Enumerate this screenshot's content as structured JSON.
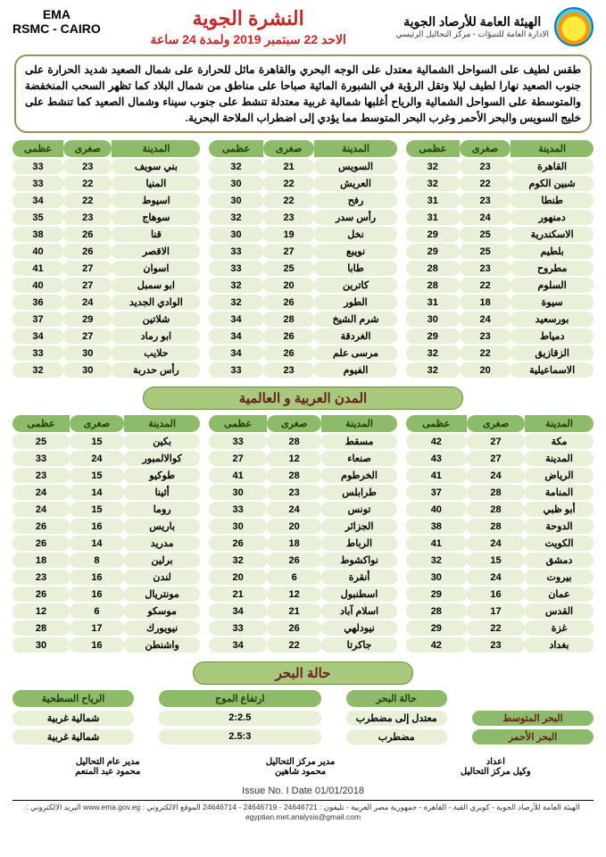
{
  "header": {
    "org_ar": "الهيئة العامة للأرصاد الجوية",
    "org_sub": "الادارة العامة للتنبؤات - مركز التحاليل الرئيسي",
    "org_en1": "EMA",
    "org_en2": "RSMC - CAIRO",
    "title": "النشرة الجوية",
    "subtitle": "الاحد 22 سبتمبر 2019 ولمدة 24 ساعة"
  },
  "synopsis": "طقس لطيف على السواحل الشمالية معتدل على الوجه البحري والقاهرة مائل للحرارة على شمال الصعيد شديد الحرارة على جنوب الصعيد نهارا لطيف ليلا وتقل الرؤية في الشبورة المائية صباحا على مناطق من شمال البلاد كما تظهر السحب المنخفضة والمتوسطة على السواحل الشمالية والرياح أغلبها شمالية غربية معتدلة تنشط على جنوب سيناء وشمال الصعيد كما تنشط على خليج السويس والبحر الأحمر وغرب البحر المتوسط مما يؤدي إلى اضطراب الملاحة البحرية.",
  "col_headers": {
    "city": "المدينة",
    "min": "صغرى",
    "max": "عظمى"
  },
  "egypt": {
    "t1": [
      {
        "c": "القاهرة",
        "min": 23,
        "max": 32
      },
      {
        "c": "شبين الكوم",
        "min": 22,
        "max": 32
      },
      {
        "c": "طنطا",
        "min": 23,
        "max": 31
      },
      {
        "c": "دمنهور",
        "min": 24,
        "max": 31
      },
      {
        "c": "الاسكندرية",
        "min": 25,
        "max": 29
      },
      {
        "c": "بلطيم",
        "min": 25,
        "max": 29
      },
      {
        "c": "مطروح",
        "min": 23,
        "max": 28
      },
      {
        "c": "السلوم",
        "min": 22,
        "max": 28
      },
      {
        "c": "سيوة",
        "min": 18,
        "max": 31
      },
      {
        "c": "بورسعيد",
        "min": 24,
        "max": 30
      },
      {
        "c": "دمياط",
        "min": 23,
        "max": 29
      },
      {
        "c": "الزقازيق",
        "min": 22,
        "max": 32
      },
      {
        "c": "الاسماعيلية",
        "min": 20,
        "max": 32
      }
    ],
    "t2": [
      {
        "c": "السويس",
        "min": 21,
        "max": 32
      },
      {
        "c": "العريش",
        "min": 22,
        "max": 30
      },
      {
        "c": "رفح",
        "min": 22,
        "max": 30
      },
      {
        "c": "رأس سدر",
        "min": 23,
        "max": 32
      },
      {
        "c": "نخل",
        "min": 19,
        "max": 30
      },
      {
        "c": "نويبع",
        "min": 27,
        "max": 33
      },
      {
        "c": "طابا",
        "min": 25,
        "max": 33
      },
      {
        "c": "كاترين",
        "min": 20,
        "max": 32
      },
      {
        "c": "الطور",
        "min": 26,
        "max": 32
      },
      {
        "c": "شرم الشيخ",
        "min": 28,
        "max": 34
      },
      {
        "c": "الغردقة",
        "min": 26,
        "max": 34
      },
      {
        "c": "مرسى علم",
        "min": 26,
        "max": 34
      },
      {
        "c": "الفيوم",
        "min": 23,
        "max": 33
      }
    ],
    "t3": [
      {
        "c": "بني سويف",
        "min": 23,
        "max": 33
      },
      {
        "c": "المنيا",
        "min": 22,
        "max": 33
      },
      {
        "c": "اسيوط",
        "min": 22,
        "max": 34
      },
      {
        "c": "سوهاج",
        "min": 23,
        "max": 35
      },
      {
        "c": "قنا",
        "min": 26,
        "max": 38
      },
      {
        "c": "الاقصر",
        "min": 26,
        "max": 40
      },
      {
        "c": "اسوان",
        "min": 27,
        "max": 41
      },
      {
        "c": "ابو سمبل",
        "min": 27,
        "max": 40
      },
      {
        "c": "الوادي الجديد",
        "min": 24,
        "max": 36
      },
      {
        "c": "شلاتين",
        "min": 29,
        "max": 37
      },
      {
        "c": "ابو رماد",
        "min": 27,
        "max": 34
      },
      {
        "c": "حلايب",
        "min": 30,
        "max": 33
      },
      {
        "c": "رأس حدربة",
        "min": 30,
        "max": 32
      }
    ]
  },
  "section_world": "المدن العربية و العالمية",
  "world": {
    "t1": [
      {
        "c": "مكة",
        "min": 27,
        "max": 42
      },
      {
        "c": "المدينة",
        "min": 27,
        "max": 43
      },
      {
        "c": "الرياض",
        "min": 24,
        "max": 41
      },
      {
        "c": "المنامة",
        "min": 28,
        "max": 37
      },
      {
        "c": "أبو ظبي",
        "min": 28,
        "max": 40
      },
      {
        "c": "الدوحة",
        "min": 28,
        "max": 38
      },
      {
        "c": "الكويت",
        "min": 24,
        "max": 41
      },
      {
        "c": "دمشق",
        "min": 15,
        "max": 32
      },
      {
        "c": "بيروت",
        "min": 24,
        "max": 30
      },
      {
        "c": "عمان",
        "min": 16,
        "max": 29
      },
      {
        "c": "القدس",
        "min": 17,
        "max": 28
      },
      {
        "c": "غزة",
        "min": 22,
        "max": 29
      },
      {
        "c": "بغداد",
        "min": 23,
        "max": 42
      }
    ],
    "t2": [
      {
        "c": "مسقط",
        "min": 28,
        "max": 33
      },
      {
        "c": "صنعاء",
        "min": 12,
        "max": 27
      },
      {
        "c": "الخرطوم",
        "min": 28,
        "max": 41
      },
      {
        "c": "طرابلس",
        "min": 23,
        "max": 30
      },
      {
        "c": "تونس",
        "min": 24,
        "max": 33
      },
      {
        "c": "الجزائر",
        "min": 20,
        "max": 30
      },
      {
        "c": "الرباط",
        "min": 18,
        "max": 26
      },
      {
        "c": "نواكشوط",
        "min": 26,
        "max": 32
      },
      {
        "c": "أنقرة",
        "min": 6,
        "max": 20
      },
      {
        "c": "اسطنبول",
        "min": 12,
        "max": 21
      },
      {
        "c": "اسلام آباد",
        "min": 21,
        "max": 34
      },
      {
        "c": "نيودلهي",
        "min": 26,
        "max": 33
      },
      {
        "c": "جاكرتا",
        "min": 22,
        "max": 34
      }
    ],
    "t3": [
      {
        "c": "بكين",
        "min": 15,
        "max": 25
      },
      {
        "c": "كوالالمبور",
        "min": 24,
        "max": 33
      },
      {
        "c": "طوكيو",
        "min": 15,
        "max": 23
      },
      {
        "c": "أثينا",
        "min": 14,
        "max": 24
      },
      {
        "c": "روما",
        "min": 15,
        "max": 24
      },
      {
        "c": "باريس",
        "min": 16,
        "max": 26
      },
      {
        "c": "مدريد",
        "min": 14,
        "max": 26
      },
      {
        "c": "برلين",
        "min": 8,
        "max": 18
      },
      {
        "c": "لندن",
        "min": 16,
        "max": 23
      },
      {
        "c": "مونتريال",
        "min": 16,
        "max": 26
      },
      {
        "c": "موسكو",
        "min": 6,
        "max": 12
      },
      {
        "c": "نيويورك",
        "min": 17,
        "max": 28
      },
      {
        "c": "واشنطن",
        "min": 16,
        "max": 30
      }
    ]
  },
  "section_sea": "حالة البحر",
  "sea": {
    "hd_wind": "الرياح السطحية",
    "hd_wave": "ارتفاع الموج",
    "hd_state": "حالة البحر",
    "rows": [
      {
        "lab": "البحر المتوسط",
        "state": "معتدل إلى مضطرب",
        "wave": "2:2.5",
        "wind": "شمالية غربية"
      },
      {
        "lab": "البحر الأحمر",
        "state": "مضطرب",
        "wave": "2.5:3",
        "wind": "شمالية غربية"
      }
    ]
  },
  "sign": {
    "s1t": "اعداد",
    "s1n": "وكيل مركز التحاليل",
    "s2t": "مدير مركز التحاليل",
    "s2n": "محمود شاهين",
    "s3t": "مدير عام التحاليل",
    "s3n": "محمود عبد المنعم"
  },
  "issue": "Issue No. I  Date 01/01/2018",
  "footer": "الهيئة العامة للأرصاد الجوية - كوبري القبة - القاهرة - جمهورية مصر العربية - تليفون : 24646721 - 24646719 - 24646714 الموقع الالكتروني : www.ema.gov.eg البريد الالكتروني : egyptian.met.analysis@gmail.com"
}
